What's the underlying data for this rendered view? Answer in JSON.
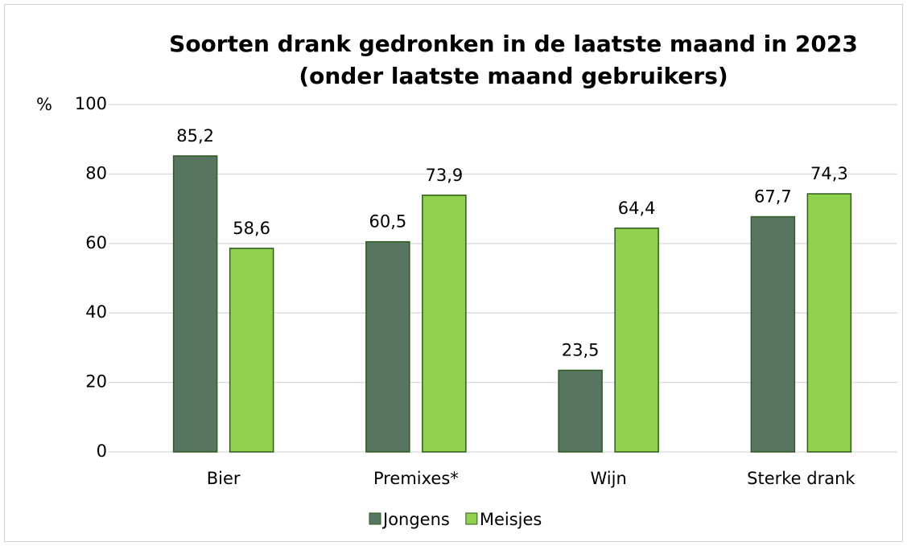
{
  "chart_data": {
    "type": "bar",
    "title": [
      "Soorten drank gedronken in de laatste maand in 2023",
      "(onder laatste maand gebruikers)"
    ],
    "ylabel": "%",
    "categories": [
      "Bier",
      "Premixes*",
      "Wijn",
      "Sterke drank"
    ],
    "series": [
      {
        "name": "Jongens",
        "color": "#577561",
        "values": [
          85.2,
          60.5,
          23.5,
          67.7
        ],
        "value_labels": [
          "85,2",
          "60,5",
          "23,5",
          "67,7"
        ]
      },
      {
        "name": "Meisjes",
        "color": "#92d050",
        "values": [
          58.6,
          73.9,
          64.4,
          74.3
        ],
        "value_labels": [
          "58,6",
          "73,9",
          "64,4",
          "74,3"
        ]
      }
    ],
    "ylim": [
      0,
      100
    ],
    "yticks": [
      0,
      20,
      40,
      60,
      80,
      100
    ],
    "grid": true,
    "legend": "bottom"
  }
}
